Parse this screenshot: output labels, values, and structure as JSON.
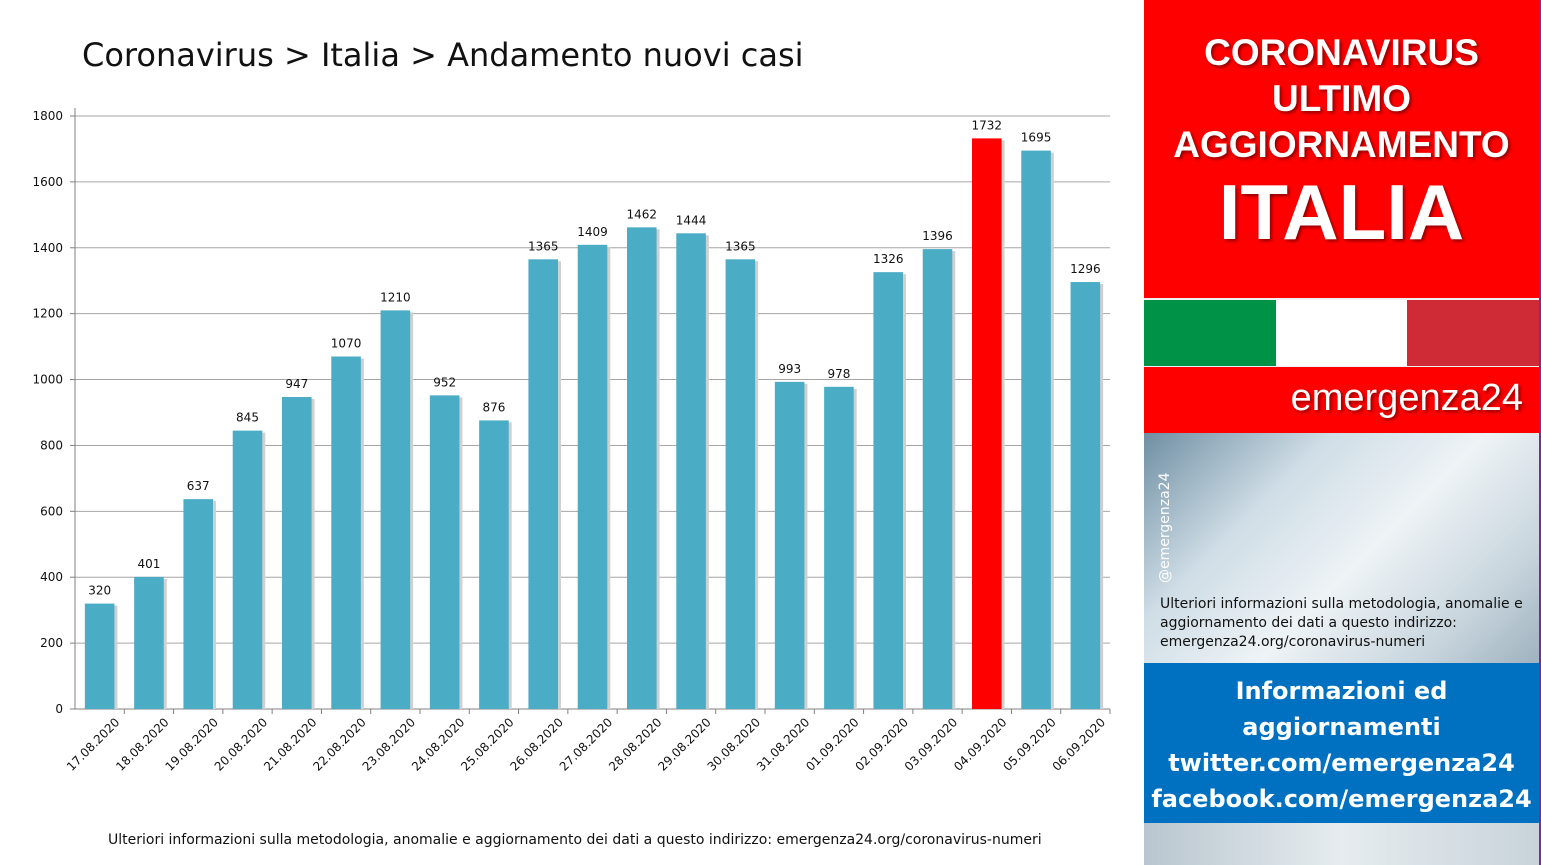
{
  "chart_data": {
    "type": "bar",
    "title": "Coronavirus > Italia > Andamento nuovi casi",
    "categories": [
      "17.08.2020",
      "18.08.2020",
      "19.08.2020",
      "20.08.2020",
      "21.08.2020",
      "22.08.2020",
      "23.08.2020",
      "24.08.2020",
      "25.08.2020",
      "26.08.2020",
      "27.08.2020",
      "28.08.2020",
      "29.08.2020",
      "30.08.2020",
      "31.08.2020",
      "01.09.2020",
      "02.09.2020",
      "03.09.2020",
      "04.09.2020",
      "05.09.2020",
      "06.09.2020"
    ],
    "values": [
      320,
      401,
      637,
      845,
      947,
      1070,
      1210,
      952,
      876,
      1365,
      1409,
      1462,
      1444,
      1365,
      993,
      978,
      1326,
      1396,
      1732,
      1695,
      1296
    ],
    "highlight_category": "04.09.2020",
    "ylim": [
      0,
      1800
    ],
    "yticks": [
      0,
      200,
      400,
      600,
      800,
      1000,
      1200,
      1400,
      1600,
      1800
    ],
    "xlabel": "",
    "ylabel": "",
    "grid": true,
    "colors": {
      "bar": "#4bacc6",
      "highlight": "#ff0000",
      "grid": "#a6a6a6",
      "axis": "#808080"
    }
  },
  "footer_note": "Ulteriori informazioni sulla metodologia, anomalie e aggiornamento dei dati a questo indirizzo: emergenza24.org/coronavirus-numeri",
  "side_panel": {
    "headline": [
      "CORONAVIRUS",
      "ULTIMO",
      "AGGIORNAMENTO"
    ],
    "country": "ITALIA",
    "brand": "emergenza24",
    "handle": "@emergenza24",
    "note": "Ulteriori informazioni sulla metodologia, anomalie e aggiornamento dei dati a questo indirizzo: emergenza24.org/coronavirus-numeri",
    "social": [
      "Informazioni ed",
      "aggiornamenti",
      "twitter.com/emergenza24",
      "facebook.com/emergenza24"
    ],
    "colors": {
      "headline_bg": "#ff0000",
      "social_bg": "#0070c0",
      "flag_green": "#009246",
      "flag_white": "#ffffff",
      "flag_red": "#ce2b37"
    }
  }
}
